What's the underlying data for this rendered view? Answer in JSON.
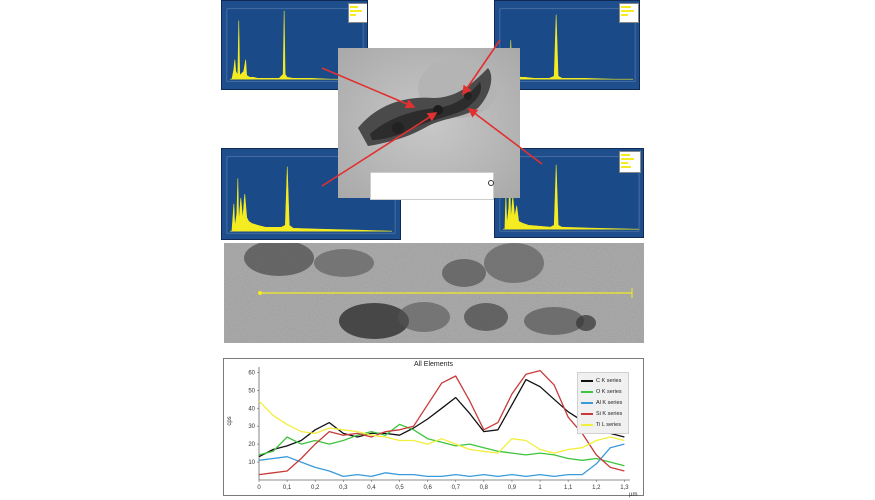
{
  "chart_data": {
    "type": "line",
    "title": "All Elements",
    "xlabel": "",
    "x_unit": "µm",
    "ylabel": "cps",
    "xlim": [
      0,
      1.32
    ],
    "ylim": [
      0,
      63
    ],
    "x_ticks": [
      "0",
      "0,1",
      "0,2",
      "0,3",
      "0,4",
      "0,5",
      "0,6",
      "0,7",
      "0,8",
      "0,9",
      "1",
      "1,1",
      "1,2",
      "1,3"
    ],
    "y_ticks": [
      "10",
      "20",
      "30",
      "40",
      "50",
      "60"
    ],
    "grid": false,
    "legend_position": "right",
    "x": [
      0,
      0.05,
      0.1,
      0.15,
      0.2,
      0.25,
      0.3,
      0.35,
      0.4,
      0.45,
      0.5,
      0.55,
      0.6,
      0.65,
      0.7,
      0.75,
      0.8,
      0.85,
      0.9,
      0.95,
      1.0,
      1.05,
      1.1,
      1.15,
      1.2,
      1.25,
      1.3
    ],
    "series": [
      {
        "name": "C K series",
        "color": "#111111",
        "values": [
          13,
          17,
          19,
          22,
          28,
          32,
          26,
          24,
          26,
          26,
          25,
          29,
          34,
          40,
          46,
          37,
          27,
          28,
          42,
          56,
          52,
          45,
          38,
          33,
          27,
          26,
          24
        ]
      },
      {
        "name": "O K series",
        "color": "#3ec43e",
        "values": [
          14,
          16,
          24,
          20,
          22,
          20,
          22,
          25,
          27,
          25,
          31,
          28,
          23,
          21,
          19,
          20,
          18,
          16,
          15,
          14,
          15,
          14,
          12,
          11,
          12,
          10,
          8
        ]
      },
      {
        "name": "Al K series",
        "color": "#3a9ad9",
        "values": [
          11,
          12,
          13,
          10,
          7,
          5,
          2,
          3,
          2,
          4,
          3,
          3,
          2,
          2,
          3,
          2,
          3,
          2,
          3,
          2,
          3,
          2,
          3,
          3,
          9,
          18,
          20
        ]
      },
      {
        "name": "Si K series",
        "color": "#c83a3a",
        "values": [
          3,
          4,
          5,
          12,
          20,
          27,
          25,
          26,
          24,
          27,
          28,
          30,
          42,
          54,
          58,
          44,
          28,
          32,
          48,
          59,
          61,
          53,
          35,
          26,
          14,
          7,
          5
        ]
      },
      {
        "name": "Ti L series",
        "color": "#f2ee3c",
        "values": [
          44,
          36,
          31,
          27,
          26,
          29,
          28,
          27,
          25,
          24,
          22,
          22,
          20,
          23,
          20,
          17,
          16,
          15,
          23,
          22,
          17,
          15,
          17,
          18,
          22,
          24,
          22
        ]
      }
    ]
  }
}
